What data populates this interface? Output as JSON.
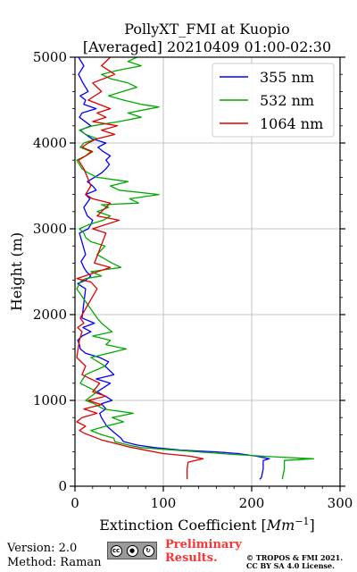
{
  "chart_data": {
    "type": "line",
    "title": "PollyXT_FMI at Kuopio",
    "subtitle": "[Averaged] 20210409 01:00-02:30",
    "xlabel": "Extinction Coefficient [Mm⁻¹]",
    "xlabel_main": "Extinction Coefficient [",
    "xlabel_unit": "Mm",
    "xlabel_exp": "−1",
    "xlabel_close": "]",
    "ylabel": "Height (m)",
    "xlim": [
      0,
      300
    ],
    "ylim": [
      0,
      5000
    ],
    "x_ticks": [
      "0",
      "100",
      "200",
      "300"
    ],
    "y_ticks": [
      "0",
      "1000",
      "2000",
      "3000",
      "4000",
      "5000"
    ],
    "grid": true,
    "legend_position": "top-right",
    "series": [
      {
        "name": "355 nm",
        "color": "#0000ff",
        "x": [
          209,
          211,
          213,
          213,
          220,
          205,
          185,
          160,
          120,
          90,
          70,
          55,
          52,
          45,
          36,
          30,
          28,
          35,
          30,
          42,
          36,
          25,
          40,
          24,
          44,
          34,
          38,
          28,
          12,
          6,
          5,
          3,
          8,
          18,
          9,
          22,
          8,
          12,
          3,
          12,
          18,
          13,
          10,
          7,
          12,
          5,
          15,
          18,
          20,
          14,
          10,
          17,
          12,
          24,
          20,
          14,
          22,
          30,
          35,
          39,
          35,
          40,
          32,
          26,
          35,
          19,
          12,
          6,
          18,
          5,
          8,
          24,
          10,
          12,
          6,
          15,
          9,
          4,
          10,
          4
        ],
        "y": [
          80,
          100,
          200,
          300,
          320,
          350,
          380,
          400,
          420,
          450,
          480,
          520,
          560,
          620,
          700,
          800,
          850,
          900,
          960,
          1000,
          1040,
          1100,
          1200,
          1250,
          1300,
          1400,
          1450,
          1500,
          1550,
          1600,
          1650,
          1700,
          1750,
          1800,
          1850,
          1900,
          1960,
          2300,
          2360,
          2400,
          2450,
          2500,
          2550,
          2620,
          2700,
          2950,
          3000,
          3050,
          3100,
          3150,
          3250,
          3350,
          3400,
          3450,
          3500,
          3550,
          3600,
          3650,
          3700,
          3750,
          3800,
          3850,
          3900,
          3950,
          4000,
          4050,
          4100,
          4150,
          4200,
          4300,
          4350,
          4400,
          4450,
          4500,
          4550,
          4600,
          4700,
          4800,
          4900,
          5000
        ]
      },
      {
        "name": "532 nm",
        "color": "#00aa00",
        "x": [
          235,
          235,
          237,
          237,
          270,
          230,
          180,
          140,
          100,
          75,
          60,
          45,
          44,
          30,
          18,
          35,
          55,
          42,
          66,
          32,
          22,
          12,
          25,
          6,
          12,
          34,
          18,
          58,
          35,
          40,
          20,
          42,
          30,
          25,
          2,
          5,
          6,
          8,
          12,
          30,
          18,
          52,
          42,
          25,
          34,
          18,
          12,
          10,
          5,
          16,
          32,
          40,
          25,
          38,
          30,
          72,
          62,
          95,
          50,
          40,
          60,
          25,
          15,
          8,
          5,
          2,
          12,
          18,
          6,
          10,
          25,
          12,
          5,
          20,
          50,
          75,
          60,
          95,
          75,
          55,
          38,
          70,
          60,
          40,
          30,
          50,
          75,
          60,
          70
        ],
        "y": [
          80,
          100,
          200,
          300,
          320,
          340,
          370,
          400,
          430,
          450,
          480,
          520,
          560,
          600,
          650,
          700,
          750,
          800,
          850,
          900,
          960,
          1000,
          1100,
          1200,
          1300,
          1400,
          1500,
          1600,
          1650,
          1700,
          1750,
          1800,
          1900,
          1960,
          2300,
          2360,
          2380,
          2400,
          2420,
          2450,
          2500,
          2550,
          2600,
          2700,
          2800,
          2850,
          2900,
          2950,
          3000,
          3050,
          3100,
          3150,
          3200,
          3250,
          3280,
          3300,
          3350,
          3400,
          3450,
          3500,
          3550,
          3600,
          3650,
          3700,
          3750,
          3800,
          3850,
          3900,
          3950,
          4000,
          4050,
          4100,
          4150,
          4200,
          4250,
          4300,
          4350,
          4420,
          4450,
          4500,
          4550,
          4650,
          4700,
          4750,
          4800,
          4850,
          4900,
          4950,
          5000
        ]
      },
      {
        "name": "1064 nm",
        "color": "#dd0000",
        "x": [
          127,
          127,
          128,
          145,
          130,
          100,
          80,
          60,
          45,
          30,
          20,
          10,
          5,
          12,
          2,
          8,
          25,
          10,
          30,
          15,
          35,
          20,
          28,
          8,
          12,
          2,
          5,
          8,
          3,
          10,
          6,
          25,
          18,
          2,
          20,
          40,
          22,
          35,
          20,
          50,
          25,
          40,
          20,
          12,
          18,
          10,
          4,
          12,
          20,
          8,
          15,
          25,
          45,
          30,
          48,
          20,
          35,
          25,
          40,
          15,
          30,
          20,
          45,
          30,
          40
        ],
        "y": [
          80,
          200,
          280,
          320,
          350,
          380,
          420,
          460,
          500,
          540,
          580,
          620,
          650,
          700,
          750,
          800,
          850,
          900,
          950,
          1000,
          1050,
          1100,
          1200,
          1300,
          1400,
          1500,
          1700,
          1800,
          1850,
          1900,
          1960,
          2300,
          2380,
          2420,
          2480,
          2550,
          2600,
          2950,
          3000,
          3100,
          3150,
          3300,
          3350,
          3400,
          3500,
          3700,
          3800,
          3850,
          3900,
          3950,
          4000,
          4050,
          4100,
          4150,
          4200,
          4250,
          4300,
          4350,
          4400,
          4500,
          4600,
          4700,
          4800,
          4900,
          5000
        ]
      }
    ]
  },
  "footer": {
    "version": "Version: 2.0",
    "method": "Method: Raman",
    "preliminary_line1": "Preliminary",
    "preliminary_line2": "Results.",
    "preliminary_color": "#ff3333",
    "copyright_line1": "© TROPOS & FMI 2021.",
    "copyright_line2": "CC BY SA 4.0 License.",
    "license_badge_icons": [
      "cc-icon",
      "by-icon",
      "sa-icon"
    ]
  }
}
